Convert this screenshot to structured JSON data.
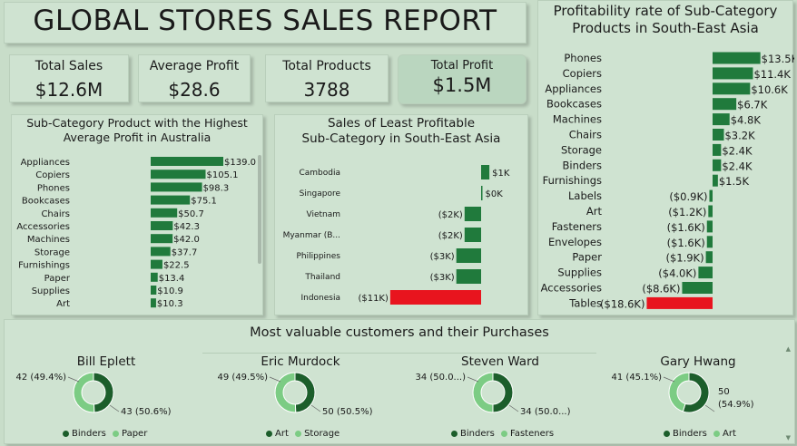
{
  "title": "GLOBAL STORES SALES REPORT",
  "kpis": [
    {
      "label": "Total Sales",
      "value": "$12.6M"
    },
    {
      "label": "Average Profit",
      "value": "$28.6"
    },
    {
      "label": "Total Products",
      "value": "3788"
    },
    {
      "label": "Total Profit",
      "value": "$1.5M"
    }
  ],
  "colors": {
    "bar": "#207a3c",
    "negative": "#e8141e",
    "dark_green": "#1c5e2b",
    "light_green": "#7ccc84"
  },
  "chart_data": [
    {
      "type": "bar",
      "orientation": "horizontal",
      "title": "Sub-Category Product with the Highest Average Profit in Australia",
      "title_lines": [
        "Sub-Category Product with the Highest",
        "Average Profit in Australia"
      ],
      "categories": [
        "Appliances",
        "Copiers",
        "Phones",
        "Bookcases",
        "Chairs",
        "Accessories",
        "Machines",
        "Storage",
        "Furnishings",
        "Paper",
        "Supplies",
        "Art"
      ],
      "values": [
        139.0,
        105.1,
        98.3,
        75.1,
        50.7,
        42.3,
        42.0,
        37.7,
        22.5,
        13.4,
        10.9,
        10.3
      ],
      "labels": [
        "$139.0",
        "$105.1",
        "$98.3",
        "$75.1",
        "$50.7",
        "$42.3",
        "$42.0",
        "$37.7",
        "$22.5",
        "$13.4",
        "$10.9",
        "$10.3"
      ]
    },
    {
      "type": "bar",
      "orientation": "horizontal",
      "title": "Sales of Least Profitable Sub-Category in South-East Asia",
      "title_lines": [
        "Sales of Least Profitable",
        "Sub-Category in South-East Asia"
      ],
      "categories": [
        "Cambodia",
        "Singapore",
        "Vietnam",
        "Myanmar (B...",
        "Philippines",
        "Thailand",
        "Indonesia"
      ],
      "values": [
        1,
        0,
        -2,
        -2,
        -3,
        -3,
        -11
      ],
      "labels": [
        "$1K",
        "$0K",
        "($2K)",
        "($2K)",
        "($3K)",
        "($3K)",
        "($11K)"
      ]
    },
    {
      "type": "bar",
      "orientation": "horizontal",
      "title": "Profitability rate of Sub-Category Products in South-East Asia",
      "title_lines": [
        "Profitability rate of Sub-Category",
        "Products in South-East Asia"
      ],
      "categories": [
        "Phones",
        "Copiers",
        "Appliances",
        "Bookcases",
        "Machines",
        "Chairs",
        "Storage",
        "Binders",
        "Furnishings",
        "Labels",
        "Art",
        "Fasteners",
        "Envelopes",
        "Paper",
        "Supplies",
        "Accessories",
        "Tables"
      ],
      "values": [
        13.5,
        11.4,
        10.6,
        6.7,
        4.8,
        3.2,
        2.4,
        2.4,
        1.5,
        -0.9,
        -1.2,
        -1.6,
        -1.6,
        -1.9,
        -4.0,
        -8.6,
        -18.6
      ],
      "labels": [
        "$13.5K",
        "$11.4K",
        "$10.6K",
        "$6.7K",
        "$4.8K",
        "$3.2K",
        "$2.4K",
        "$2.4K",
        "$1.5K",
        "($0.9K)",
        "($1.2K)",
        "($1.6K)",
        "($1.6K)",
        "($1.9K)",
        "($4.0K)",
        "($8.6K)",
        "($18.6K)"
      ]
    },
    {
      "type": "pie",
      "donut": true,
      "section_title": "Most valuable customers and their Purchases",
      "customers": [
        {
          "name": "Bill Eplett",
          "slices": [
            {
              "name": "Binders",
              "value": 42,
              "label": "42 (49.4%)"
            },
            {
              "name": "Paper",
              "value": 43,
              "label": "43 (50.6%)"
            }
          ]
        },
        {
          "name": "Eric Murdock",
          "slices": [
            {
              "name": "Art",
              "value": 49,
              "label": "49 (49.5%)"
            },
            {
              "name": "Storage",
              "value": 50,
              "label": "50 (50.5%)"
            }
          ]
        },
        {
          "name": "Steven Ward",
          "slices": [
            {
              "name": "Binders",
              "value": 34,
              "label": "34 (50.0...)"
            },
            {
              "name": "Fasteners",
              "value": 34,
              "label": "34 (50.0...)"
            }
          ]
        },
        {
          "name": "Gary Hwang",
          "slices": [
            {
              "name": "Binders",
              "value": 50,
              "label": "50 (54.9%)"
            },
            {
              "name": "Art",
              "value": 41,
              "label": "41 (45.1%)"
            }
          ]
        }
      ]
    }
  ]
}
